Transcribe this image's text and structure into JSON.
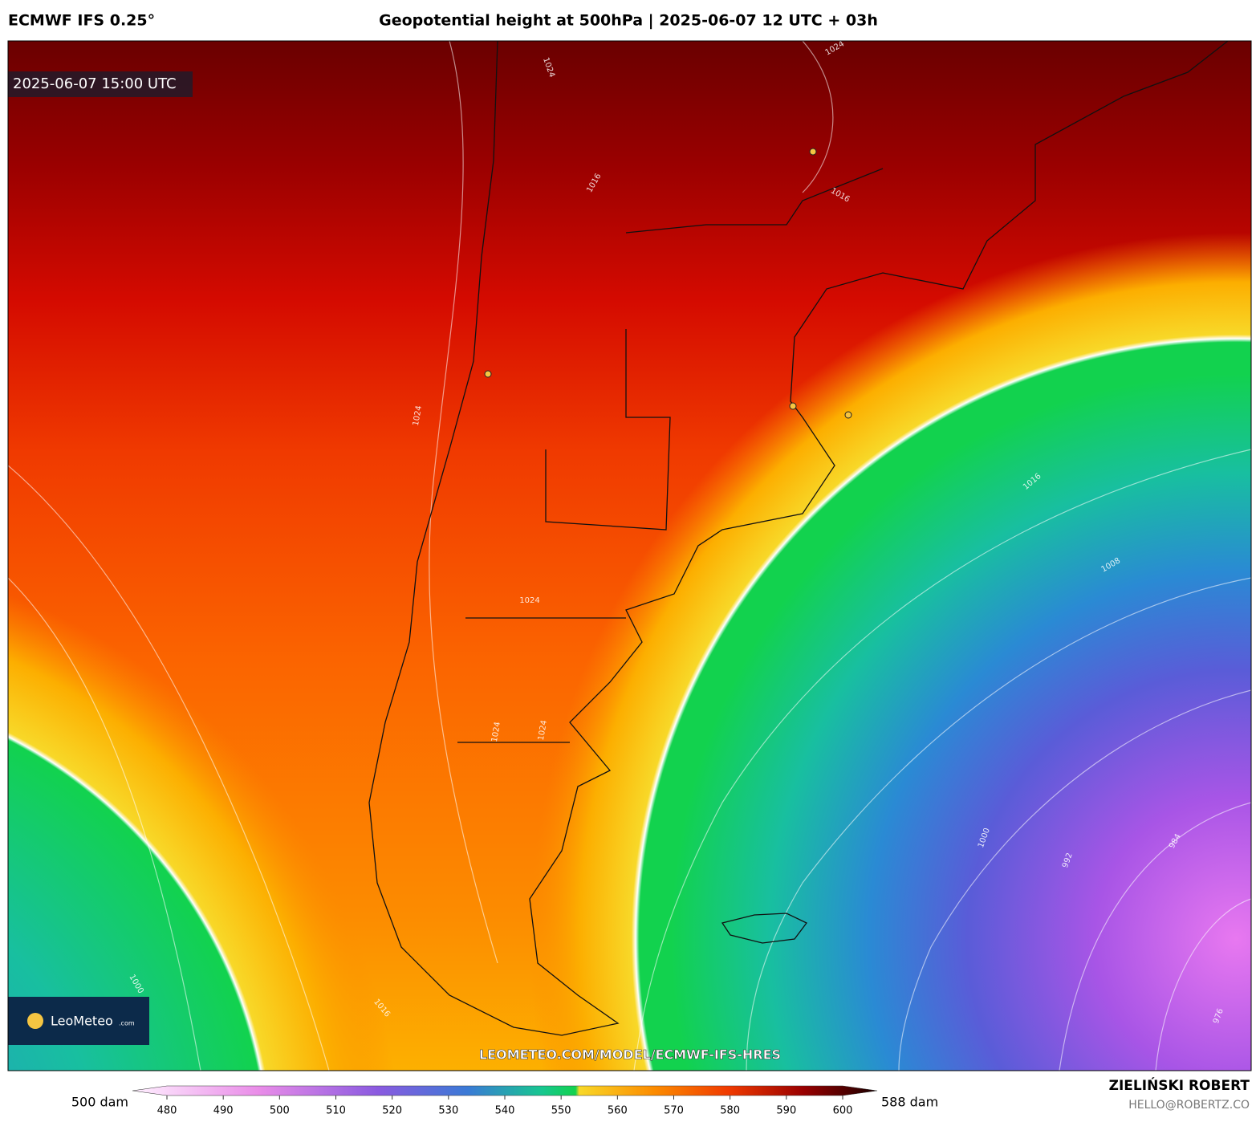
{
  "header": {
    "model": "ECMWF IFS 0.25°",
    "title": "Geopotential height at 500hPa | 2025-06-07 12 UTC + 03h"
  },
  "map": {
    "valid_time": "2025-06-07 15:00 UTC",
    "watermark": "LEOMETEO.COM/MODEL/ECMWF-IFS-HRES",
    "logo": "LeoMeteo",
    "logo_suffix": ".com",
    "contour_labels": [
      1024,
      1024,
      1016,
      1016,
      1024,
      1024,
      1024,
      1024,
      1016,
      1008,
      1000,
      992,
      984,
      976,
      1000,
      1016
    ]
  },
  "colorbar": {
    "min_label": "500 dam",
    "max_label": "588 dam",
    "ticks": [
      480,
      490,
      500,
      510,
      520,
      530,
      540,
      550,
      560,
      570,
      580,
      590,
      600
    ]
  },
  "footer": {
    "author": "ZIELIŃSKI ROBERT",
    "email": "HELLO@ROBERTZ.CO"
  }
}
